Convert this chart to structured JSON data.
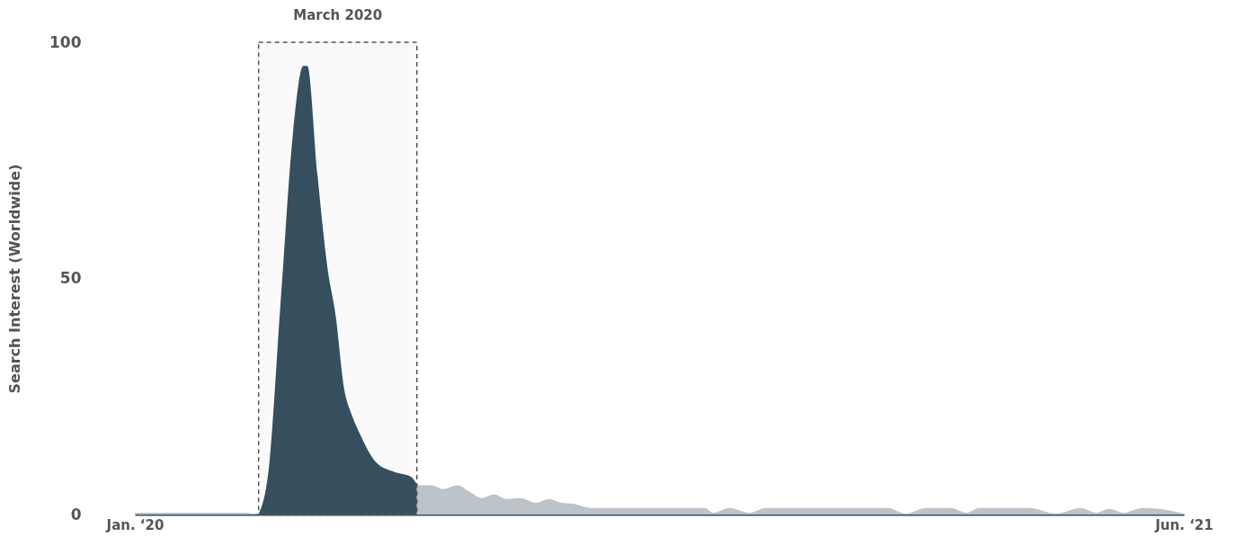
{
  "chart_data": {
    "type": "area",
    "ylabel": "Search Interest (Worldwide)",
    "ylim": [
      0,
      100
    ],
    "yticks": [
      0,
      50,
      100
    ],
    "xlim": [
      "2020-01-01",
      "2021-06-01"
    ],
    "xticks": [
      {
        "value": "2020-01-01",
        "label": "Jan. ‘20"
      },
      {
        "value": "2021-06-01",
        "label": "Jun. ‘21"
      }
    ],
    "bands": [
      {
        "axis": "x",
        "from": "2020-03-02",
        "to": "2020-05-19",
        "label": "March 2020",
        "color": "#555555"
      }
    ],
    "series": [
      {
        "color": "#bcc4c9",
        "x": [
          "2020-01-01",
          "2020-01-20",
          "2020-02-10",
          "2020-02-25",
          "2020-03-01"
        ],
        "values": [
          0.4,
          0.4,
          0.4,
          0.4,
          0
        ]
      },
      {
        "color": "#344f5e",
        "x": [
          "2020-03-02",
          "2020-03-07",
          "2020-03-13",
          "2020-03-19",
          "2020-03-24",
          "2020-03-26",
          "2020-03-31",
          "2020-04-05",
          "2020-04-09",
          "2020-04-13",
          "2020-04-17",
          "2020-04-21",
          "2020-04-29",
          "2020-05-08",
          "2020-05-16",
          "2020-05-19"
        ],
        "values": [
          0,
          9.7,
          46,
          81,
          95,
          95,
          72,
          52,
          42,
          27,
          21,
          17,
          11,
          9,
          8,
          6.4
        ]
      },
      {
        "color": "#bcc4c9",
        "x": [
          "2020-05-19",
          "2020-05-26",
          "2020-06-01",
          "2020-06-08",
          "2020-06-14",
          "2020-06-20",
          "2020-06-26",
          "2020-07-02",
          "2020-07-09",
          "2020-07-17",
          "2020-07-23",
          "2020-07-29",
          "2020-08-04",
          "2020-08-13",
          "2020-10-08",
          "2020-10-12",
          "2020-10-20",
          "2020-10-30",
          "2020-11-07",
          "2021-01-06",
          "2021-01-15",
          "2021-01-25",
          "2021-02-06",
          "2021-02-14",
          "2021-02-20",
          "2021-03-17",
          "2021-03-30",
          "2021-04-11",
          "2021-04-19",
          "2021-04-25",
          "2021-05-02",
          "2021-05-12",
          "2021-05-20",
          "2021-06-01"
        ],
        "values": [
          6.2,
          6.2,
          5.4,
          6.2,
          4.8,
          3.5,
          4.3,
          3.3,
          3.5,
          2.5,
          3.3,
          2.5,
          2.3,
          1.4,
          1.4,
          0.4,
          1.4,
          0.4,
          1.4,
          1.4,
          0.2,
          1.4,
          1.4,
          0.4,
          1.4,
          1.4,
          0.2,
          1.4,
          0.4,
          1.2,
          0.4,
          1.4,
          1.2,
          0.2
        ]
      }
    ]
  }
}
